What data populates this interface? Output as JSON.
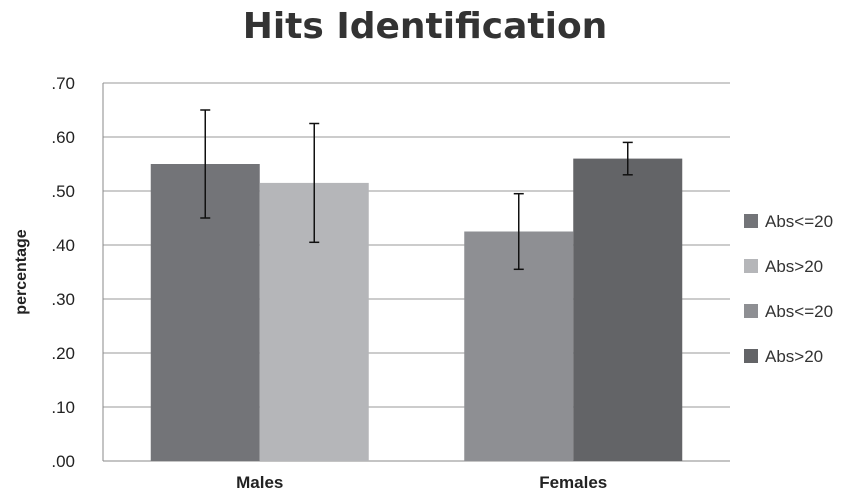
{
  "chart_data": {
    "type": "bar",
    "title": "Hits Identification",
    "ylabel": "percentage",
    "xlabel": "",
    "ylim": [
      0,
      0.7
    ],
    "yticks": [
      0,
      0.1,
      0.2,
      0.3,
      0.4,
      0.5,
      0.6,
      0.7
    ],
    "ytick_labels": [
      ".00",
      ".10",
      ".20",
      ".30",
      ".40",
      ".50",
      ".60",
      ".70"
    ],
    "grid": true,
    "legend_position": "right",
    "categories": [
      "Males",
      "Females"
    ],
    "bars": [
      {
        "legend": "Abs<=20",
        "category": "Males",
        "value": 0.55,
        "err_low": 0.45,
        "err_high": 0.65,
        "color": "#737478"
      },
      {
        "legend": "Abs>20",
        "category": "Males",
        "value": 0.515,
        "err_low": 0.405,
        "err_high": 0.625,
        "color": "#b5b6b9"
      },
      {
        "legend": "Abs<=20",
        "category": "Females",
        "value": 0.425,
        "err_low": 0.355,
        "err_high": 0.495,
        "color": "#8e8f93"
      },
      {
        "legend": "Abs>20",
        "category": "Females",
        "value": 0.56,
        "err_low": 0.53,
        "err_high": 0.59,
        "color": "#636467"
      }
    ]
  }
}
